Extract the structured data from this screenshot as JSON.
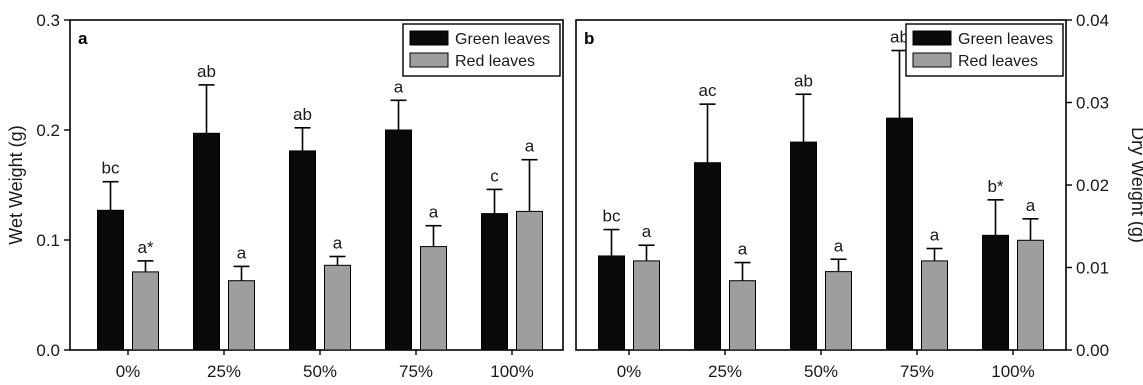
{
  "chart_data": [
    {
      "type": "bar",
      "panel_label": "a",
      "categories": [
        "0%",
        "25%",
        "50%",
        "75%",
        "100%"
      ],
      "ylabel": "Wet Weight (g)",
      "ylim": [
        0,
        0.3
      ],
      "yticks": [
        "0.0",
        "0.1",
        "0.2",
        "0.3"
      ],
      "yaxis_side": "left",
      "legend_position": "top-right",
      "series": [
        {
          "name": "Green leaves",
          "color": "#0a0a0a",
          "values": [
            0.127,
            0.197,
            0.181,
            0.2,
            0.124
          ],
          "errors": [
            0.026,
            0.044,
            0.021,
            0.027,
            0.022
          ],
          "labels": [
            "bc",
            "ab",
            "ab",
            "a",
            "c"
          ]
        },
        {
          "name": "Red leaves",
          "color": "#9e9e9e",
          "values": [
            0.071,
            0.063,
            0.077,
            0.094,
            0.126
          ],
          "errors": [
            0.01,
            0.013,
            0.008,
            0.019,
            0.047
          ],
          "labels": [
            "a*",
            "a",
            "a",
            "a",
            "a"
          ]
        }
      ]
    },
    {
      "type": "bar",
      "panel_label": "b",
      "categories": [
        "0%",
        "25%",
        "50%",
        "75%",
        "100%"
      ],
      "ylabel": "Dry Weight (g)",
      "ylim": [
        0,
        0.04
      ],
      "yticks": [
        "0.00",
        "0.01",
        "0.02",
        "0.03",
        "0.04"
      ],
      "yaxis_side": "right",
      "legend_position": "top-right",
      "series": [
        {
          "name": "Green leaves",
          "color": "#0a0a0a",
          "values": [
            0.0114,
            0.0227,
            0.0252,
            0.0281,
            0.0139
          ],
          "errors": [
            0.0032,
            0.0071,
            0.0058,
            0.0082,
            0.0043
          ],
          "labels": [
            "bc",
            "ac",
            "ab",
            "ab",
            "b*"
          ]
        },
        {
          "name": "Red leaves",
          "color": "#9e9e9e",
          "values": [
            0.0108,
            0.0084,
            0.0095,
            0.0108,
            0.0133
          ],
          "errors": [
            0.0019,
            0.0022,
            0.0015,
            0.0015,
            0.0026
          ],
          "labels": [
            "a",
            "a",
            "a",
            "a",
            "a"
          ]
        }
      ]
    }
  ]
}
